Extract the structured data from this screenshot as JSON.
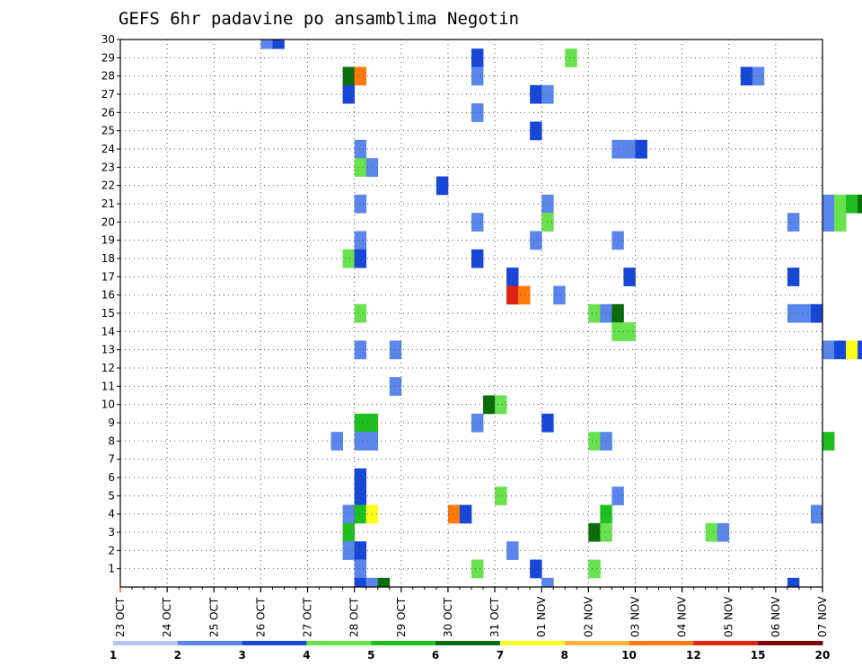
{
  "chart_data": {
    "type": "heatmap",
    "title": "GEFS 6hr padavine po ansamblima Negotin",
    "xlabel": "",
    "ylabel": "",
    "x_ticks": [
      "23 OCT",
      "24 OCT",
      "25 OCT",
      "26 OCT",
      "27 OCT",
      "28 OCT",
      "29 OCT",
      "30 OCT",
      "31 OCT",
      "01 NOV",
      "02 NOV",
      "03 NOV",
      "04 NOV",
      "05 NOV",
      "06 NOV",
      "07 NOV"
    ],
    "x_range": [
      "23 OCT 00",
      "07 NOV 00"
    ],
    "x_step_hours": 6,
    "y_ticks": [
      1,
      2,
      3,
      4,
      5,
      6,
      7,
      8,
      9,
      10,
      11,
      12,
      13,
      14,
      15,
      16,
      17,
      18,
      19,
      20,
      21,
      22,
      23,
      24,
      25,
      26,
      27,
      28,
      29,
      30
    ],
    "y_range": [
      0,
      30
    ],
    "grid": true,
    "colorbar": {
      "labels": [
        "1",
        "2",
        "3",
        "4",
        "5",
        "6",
        "7",
        "8",
        "10",
        "12",
        "15",
        "20"
      ],
      "colors": [
        "#b3c8f5",
        "#5a86ec",
        "#1747d6",
        "#69e34d",
        "#1fbf1f",
        "#0a6d0a",
        "#ffff1a",
        "#ffb23c",
        "#ff7a0d",
        "#e0230d",
        "#7a0505"
      ]
    },
    "cells": [
      [
        12,
        30,
        1
      ],
      [
        13,
        30,
        2
      ],
      [
        68,
        30,
        5
      ],
      [
        69,
        30,
        2
      ],
      [
        92,
        30,
        1
      ],
      [
        30,
        29,
        2
      ],
      [
        38,
        29,
        3
      ],
      [
        73,
        29,
        1
      ],
      [
        74,
        29,
        6
      ],
      [
        75,
        29,
        2
      ],
      [
        19,
        28,
        5
      ],
      [
        20,
        28,
        8
      ],
      [
        30,
        28,
        1
      ],
      [
        53,
        28,
        2
      ],
      [
        54,
        28,
        1
      ],
      [
        19,
        27,
        2
      ],
      [
        35,
        27,
        2
      ],
      [
        36,
        27,
        1
      ],
      [
        30,
        26,
        1
      ],
      [
        35,
        25,
        2
      ],
      [
        20,
        24,
        1
      ],
      [
        42,
        24,
        1
      ],
      [
        43,
        24,
        1
      ],
      [
        44,
        24,
        2
      ],
      [
        20,
        23,
        3
      ],
      [
        21,
        23,
        1
      ],
      [
        65,
        23,
        1
      ],
      [
        27,
        22,
        2
      ],
      [
        20,
        21,
        1
      ],
      [
        36,
        21,
        1
      ],
      [
        60,
        21,
        1
      ],
      [
        61,
        21,
        3
      ],
      [
        62,
        21,
        4
      ],
      [
        63,
        21,
        5
      ],
      [
        64,
        21,
        6
      ],
      [
        65,
        21,
        2
      ],
      [
        71,
        21,
        4
      ],
      [
        30,
        20,
        1
      ],
      [
        36,
        20,
        3
      ],
      [
        57,
        20,
        1
      ],
      [
        60,
        20,
        1
      ],
      [
        61,
        20,
        3
      ],
      [
        88,
        20,
        5
      ],
      [
        89,
        20,
        1
      ],
      [
        20,
        19,
        1
      ],
      [
        35,
        19,
        1
      ],
      [
        42,
        19,
        1
      ],
      [
        19,
        18,
        3
      ],
      [
        20,
        18,
        2
      ],
      [
        30,
        18,
        2
      ],
      [
        87,
        18,
        2
      ],
      [
        92,
        18,
        1
      ],
      [
        93,
        18,
        6
      ],
      [
        33,
        17,
        2
      ],
      [
        43,
        17,
        2
      ],
      [
        57,
        17,
        2
      ],
      [
        77,
        17,
        2
      ],
      [
        78,
        17,
        6
      ],
      [
        81,
        17,
        1
      ],
      [
        82,
        17,
        3
      ],
      [
        87,
        17,
        3
      ],
      [
        88,
        17,
        1
      ],
      [
        33,
        16,
        9
      ],
      [
        34,
        16,
        8
      ],
      [
        37,
        16,
        1
      ],
      [
        20,
        15,
        3
      ],
      [
        40,
        15,
        3
      ],
      [
        41,
        15,
        1
      ],
      [
        42,
        15,
        5
      ],
      [
        57,
        15,
        1
      ],
      [
        58,
        15,
        1
      ],
      [
        59,
        15,
        2
      ],
      [
        68,
        15,
        1
      ],
      [
        42,
        14,
        3
      ],
      [
        43,
        14,
        3
      ],
      [
        20,
        13,
        1
      ],
      [
        23,
        13,
        1
      ],
      [
        60,
        13,
        1
      ],
      [
        61,
        13,
        2
      ],
      [
        62,
        13,
        6
      ],
      [
        63,
        13,
        2
      ],
      [
        79,
        13,
        1
      ],
      [
        80,
        13,
        1
      ],
      [
        71,
        12,
        2
      ],
      [
        23,
        11,
        1
      ],
      [
        31,
        10,
        5
      ],
      [
        32,
        10,
        3
      ],
      [
        20,
        9,
        4
      ],
      [
        21,
        9,
        4
      ],
      [
        30,
        9,
        1
      ],
      [
        36,
        9,
        2
      ],
      [
        18,
        8,
        1
      ],
      [
        20,
        8,
        1
      ],
      [
        21,
        8,
        1
      ],
      [
        40,
        8,
        3
      ],
      [
        41,
        8,
        1
      ],
      [
        60,
        8,
        4
      ],
      [
        92,
        8,
        1
      ],
      [
        93,
        8,
        5
      ],
      [
        20,
        6,
        2
      ],
      [
        20,
        5,
        2
      ],
      [
        32,
        5,
        3
      ],
      [
        42,
        5,
        1
      ],
      [
        19,
        4,
        1
      ],
      [
        20,
        4,
        4
      ],
      [
        21,
        4,
        6
      ],
      [
        28,
        4,
        8
      ],
      [
        29,
        4,
        2
      ],
      [
        41,
        4,
        4
      ],
      [
        59,
        4,
        1
      ],
      [
        79,
        4,
        1
      ],
      [
        80,
        4,
        1
      ],
      [
        88,
        4,
        3
      ],
      [
        89,
        4,
        1
      ],
      [
        19,
        3,
        4
      ],
      [
        40,
        3,
        5
      ],
      [
        41,
        3,
        3
      ],
      [
        50,
        3,
        3
      ],
      [
        51,
        3,
        1
      ],
      [
        64,
        3,
        7
      ],
      [
        65,
        3,
        10
      ],
      [
        66,
        3,
        8
      ],
      [
        67,
        3,
        5
      ],
      [
        68,
        3,
        6
      ],
      [
        69,
        3,
        2
      ],
      [
        83,
        3,
        4
      ],
      [
        84,
        3,
        8
      ],
      [
        85,
        3,
        1
      ],
      [
        88,
        3,
        2
      ],
      [
        89,
        3,
        9
      ],
      [
        90,
        3,
        2
      ],
      [
        19,
        2,
        1
      ],
      [
        20,
        2,
        2
      ],
      [
        33,
        2,
        1
      ],
      [
        67,
        2,
        3
      ],
      [
        77,
        2,
        1
      ],
      [
        20,
        1,
        1
      ],
      [
        30,
        1,
        3
      ],
      [
        35,
        1,
        2
      ],
      [
        40,
        1,
        3
      ],
      [
        67,
        1,
        6
      ],
      [
        68,
        1,
        8
      ],
      [
        20,
        0,
        2
      ],
      [
        21,
        0,
        1
      ],
      [
        22,
        0,
        5
      ],
      [
        36,
        0,
        1
      ],
      [
        57,
        0,
        2
      ],
      [
        36,
        -1,
        2
      ],
      [
        61,
        -1,
        3
      ],
      [
        62,
        -1,
        5
      ],
      [
        63,
        -1,
        6
      ],
      [
        64,
        -1,
        1
      ]
    ]
  }
}
